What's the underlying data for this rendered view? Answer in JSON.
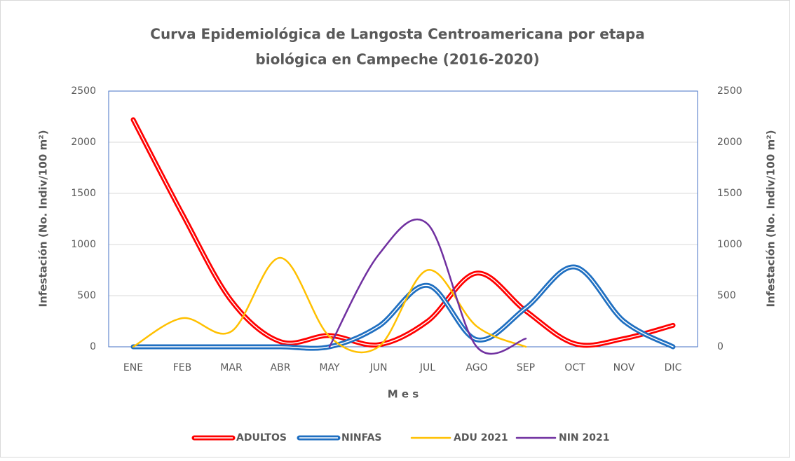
{
  "chart_data": {
    "type": "line",
    "title_lines": [
      "Curva Epidemiológica de Langosta Centroamericana por etapa",
      "biológica en Campeche (2016-2020)"
    ],
    "x_label": "M e s",
    "y_label": "Infestación  (No. Indiv/100 m²)",
    "y2_label": "Infestación  (No. Indiv/100 m²)",
    "categories": [
      "ENE",
      "FEB",
      "MAR",
      "ABR",
      "MAY",
      "JUN",
      "JUL",
      "AGO",
      "SEP",
      "OCT",
      "NOV",
      "DIC"
    ],
    "series": [
      {
        "name": "ADULTOS",
        "color": "#ff0000",
        "style": "double",
        "values": [
          2220,
          1300,
          450,
          50,
          110,
          20,
          250,
          720,
          350,
          30,
          80,
          210
        ]
      },
      {
        "name": "NINFAS",
        "color": "#1f6fc1",
        "style": "double",
        "values": [
          0,
          0,
          0,
          0,
          0,
          200,
          600,
          70,
          380,
          780,
          250,
          0
        ]
      },
      {
        "name": "ADU 2021",
        "color": "#ffc000",
        "style": "single",
        "axis": "y2",
        "values": [
          0,
          280,
          150,
          870,
          100,
          0,
          750,
          200,
          0,
          null,
          null,
          null
        ]
      },
      {
        "name": "NIN 2021",
        "color": "#7030a0",
        "style": "single",
        "axis": "y2",
        "values": [
          null,
          null,
          null,
          null,
          0,
          900,
          1200,
          0,
          80,
          null,
          null,
          null
        ]
      }
    ],
    "ylim": [
      0,
      2500
    ],
    "yticks": [
      0,
      500,
      1000,
      1500,
      2000,
      2500
    ],
    "y2lim": [
      0,
      2500
    ],
    "y2ticks": [
      0,
      500,
      1000,
      1500,
      2000,
      2500
    ],
    "grid": true,
    "smooth": true,
    "legend": "bottom"
  }
}
